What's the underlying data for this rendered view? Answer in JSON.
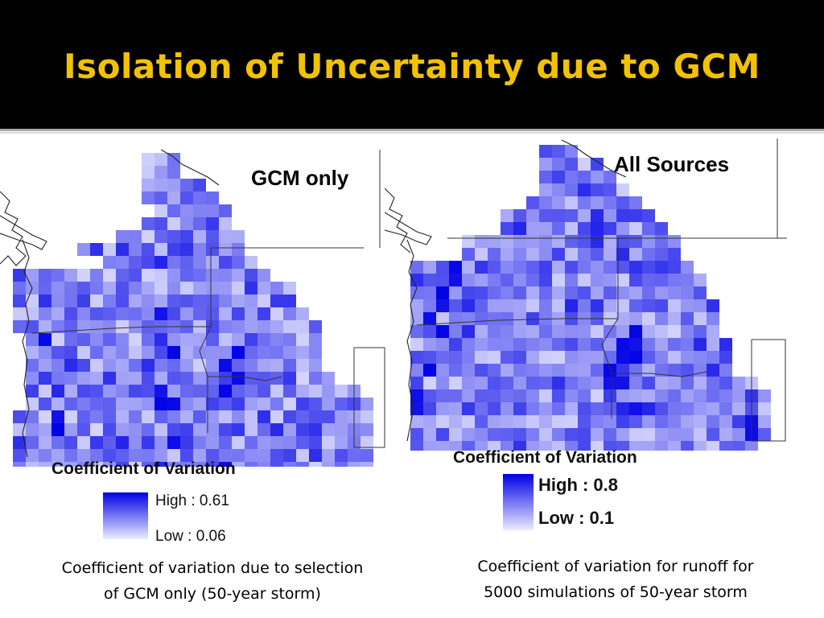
{
  "slide": {
    "title": "Isolation of Uncertainty due to GCM"
  },
  "left_panel": {
    "label": "GCM only",
    "legend_title": "Coefficient of Variation",
    "legend_high": "High : 0.61",
    "legend_low": "Low : 0.06",
    "caption_line1": "Coefficient of variation due to selection",
    "caption_line2": "of GCM only (50-year storm)"
  },
  "right_panel": {
    "label": "All Sources",
    "legend_title": "Coefficient of Variation",
    "legend_high": "High : 0.8",
    "legend_low": "Low : 0.1",
    "caption_line1": "Coefficient of variation for runoff for",
    "caption_line2": "5000 simulations of 50-year storm"
  },
  "colors": {
    "title_bar": "#000000",
    "title_text": "#f2c200",
    "ramp_high": "#0000e6",
    "ramp_low": "#ececff"
  }
}
